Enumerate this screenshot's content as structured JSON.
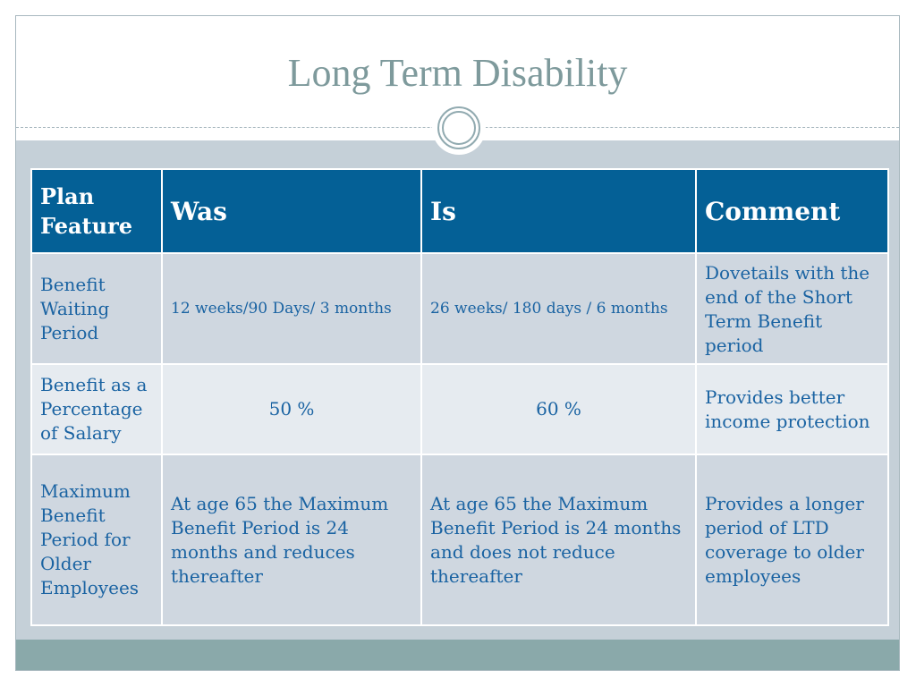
{
  "title": "Long Term Disability",
  "table": {
    "headers": [
      "Plan Feature",
      "Was",
      "Is",
      "Comment"
    ],
    "rows": [
      {
        "feature": "Benefit Waiting Period",
        "was": "12 weeks/90 Days/ 3 months",
        "is": "26 weeks/ 180 days / 6 months",
        "comment": "Dovetails with the end of the Short Term Benefit period"
      },
      {
        "feature": "Benefit as a Percentage of Salary",
        "was": "50 %",
        "is": "60 %",
        "comment": "Provides better income protection"
      },
      {
        "feature": "Maximum Benefit Period  for Older Employees",
        "was": "At age 65 the Maximum Benefit Period  is 24 months and reduces thereafter",
        "is": "At age 65 the Maximum Benefit Period is 24 months and does not reduce thereafter",
        "comment": "Provides a longer period of LTD coverage to older employees"
      }
    ]
  },
  "colors": {
    "header_bg": "#046096",
    "row_dark": "#cfd7e0",
    "row_light": "#e6ebf0",
    "title_color": "#7e9a9c",
    "body_text": "#1a63a2",
    "footer_bar": "#8aa9aa"
  }
}
